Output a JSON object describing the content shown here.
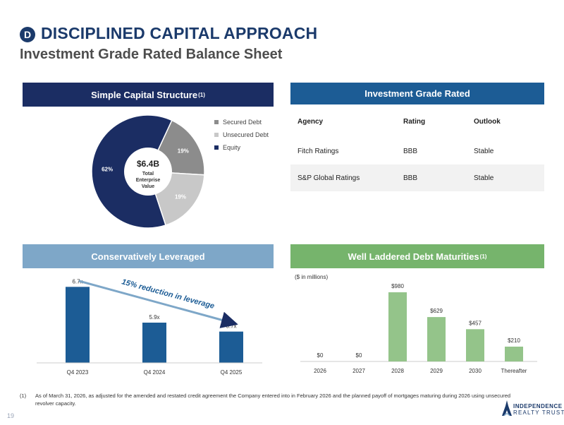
{
  "header": {
    "badge": "D",
    "title": "DISCIPLINED CAPITAL APPROACH",
    "subtitle": "Investment Grade Rated Balance Sheet"
  },
  "capital_structure": {
    "heading": "Simple Capital Structure",
    "heading_sup": "(1)",
    "center_value": "$6.4B",
    "center_label_1": "Total",
    "center_label_2": "Enterprise",
    "center_label_3": "Value",
    "legend": [
      "Secured Debt",
      "Unsecured Debt",
      "Equity"
    ]
  },
  "ratings": {
    "heading": "Investment Grade Rated",
    "columns": [
      "Agency",
      "Rating",
      "Outlook"
    ],
    "rows": [
      [
        "Fitch Ratings",
        "BBB",
        "Stable"
      ],
      [
        "S&P Global Ratings",
        "BBB",
        "Stable"
      ]
    ]
  },
  "leverage": {
    "heading": "Conservatively Leveraged",
    "annotation": "15% reduction in leverage"
  },
  "maturities": {
    "heading": "Well Laddered Debt Maturities",
    "heading_sup": "(1)",
    "units": "($ in millions)"
  },
  "chart_data": [
    {
      "type": "pie",
      "categories": [
        "Secured Debt",
        "Unsecured Debt",
        "Equity"
      ],
      "values": [
        19,
        19,
        62
      ],
      "labels": [
        "19%",
        "19%",
        "62%"
      ],
      "colors": [
        "#8c8c8c",
        "#c8c8c8",
        "#1b2d63"
      ]
    },
    {
      "type": "bar",
      "categories": [
        "Q4 2023",
        "Q4 2024",
        "Q4 2025"
      ],
      "values": [
        6.7,
        5.9,
        5.7
      ],
      "labels": [
        "6.7x",
        "5.9x",
        "5.7x"
      ],
      "ylim": [
        5.0,
        6.8
      ],
      "color": "#1c5c95"
    },
    {
      "type": "bar",
      "categories": [
        "2026",
        "2027",
        "2028",
        "2029",
        "2030",
        "Thereafter"
      ],
      "values": [
        0,
        0,
        980,
        629,
        457,
        210
      ],
      "labels": [
        "$0",
        "$0",
        "$980",
        "$629",
        "$457",
        "$210"
      ],
      "ylim": [
        0,
        1000
      ],
      "color": "#94c48a"
    }
  ],
  "footnote": {
    "number": "(1)",
    "text": "As of March 31, 2026, as adjusted for the amended and restated credit agreement the Company entered into in February 2026 and the planned payoff of mortgages maturing during 2026 using unsecured revolver capacity."
  },
  "page_number": "19",
  "logo": {
    "line1": "INDEPENDENCE",
    "line2": "REALTY TRUST"
  }
}
